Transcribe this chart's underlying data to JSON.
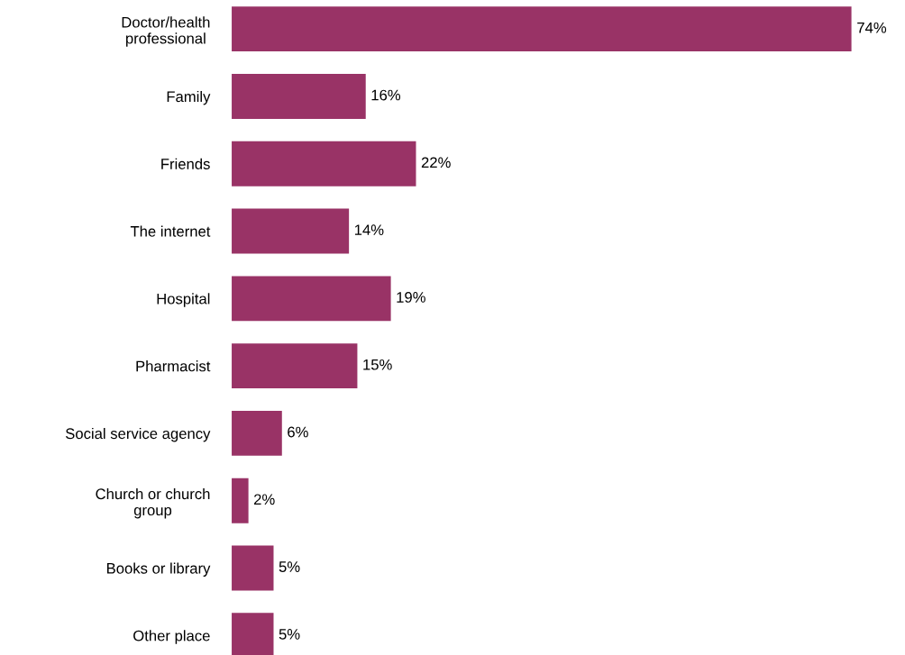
{
  "chart_data": {
    "type": "bar",
    "orientation": "horizontal",
    "categories": [
      "Doctor/health\nprofessional",
      "Family",
      "Friends",
      "The internet",
      "Hospital",
      "Pharmacist",
      "Social service agency",
      "Church or church\ngroup",
      "Books or library",
      "Other place"
    ],
    "values": [
      74,
      16,
      22,
      14,
      19,
      15,
      6,
      2,
      5,
      5
    ],
    "value_labels": [
      "74%",
      "16%",
      "22%",
      "14%",
      "19%",
      "15%",
      "6%",
      "2%",
      "5%",
      "5%"
    ],
    "color": "#993366",
    "tick_labels": "y",
    "grid": false,
    "legend": false
  }
}
